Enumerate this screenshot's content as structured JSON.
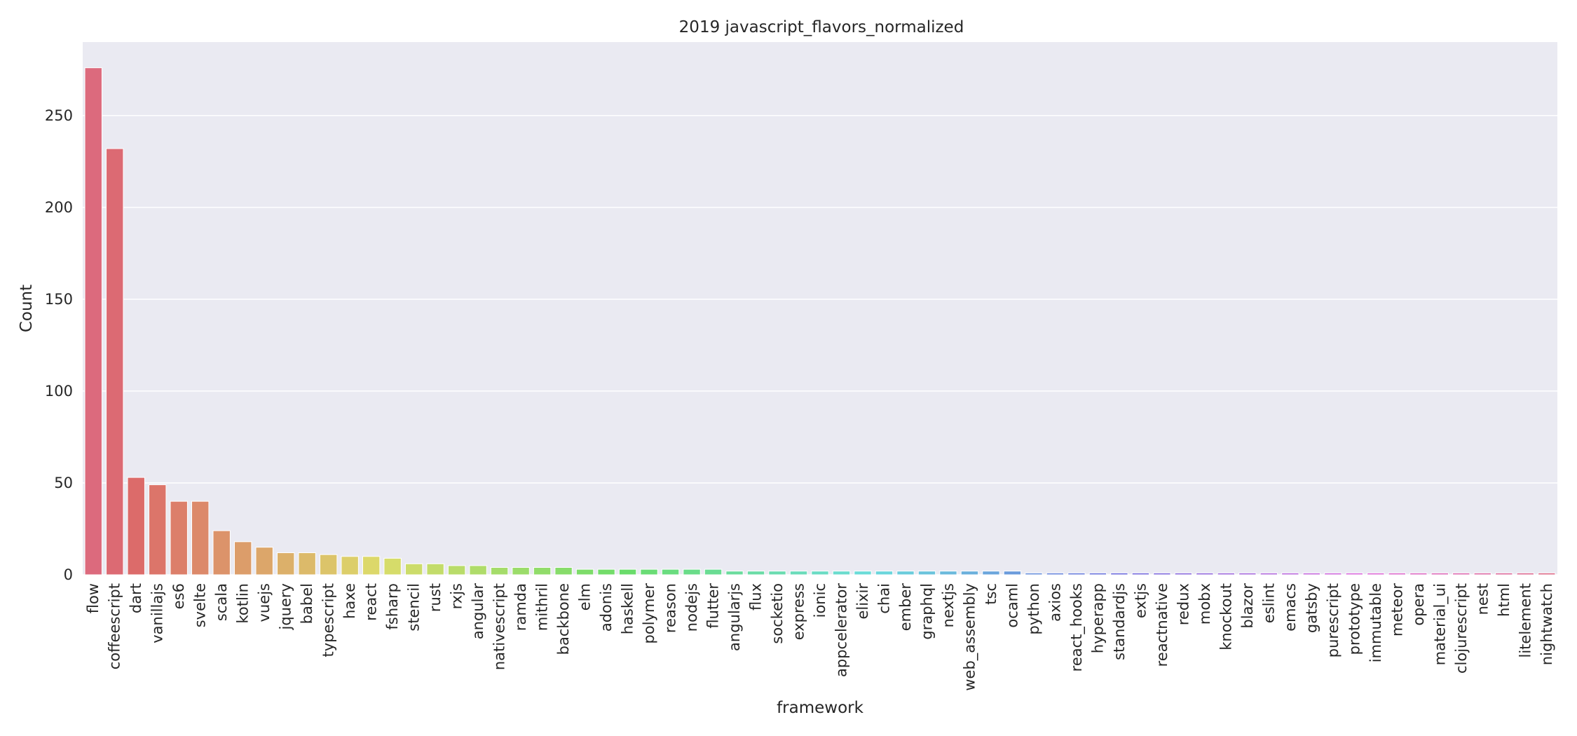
{
  "chart_data": {
    "type": "bar",
    "title": "2019 javascript_flavors_normalized",
    "xlabel": "framework",
    "ylabel": "Count",
    "ylim": [
      0,
      290
    ],
    "yticks": [
      0,
      50,
      100,
      150,
      200,
      250
    ],
    "grid": true,
    "legend": "none",
    "categories": [
      "flow",
      "coffeescript",
      "dart",
      "vanillajs",
      "es6",
      "svelte",
      "scala",
      "kotlin",
      "vuejs",
      "jquery",
      "babel",
      "typescript",
      "haxe",
      "react",
      "fsharp",
      "stencil",
      "rust",
      "rxjs",
      "angular",
      "nativescript",
      "ramda",
      "mithril",
      "backbone",
      "elm",
      "adonis",
      "haskell",
      "polymer",
      "reason",
      "nodejs",
      "flutter",
      "angularjs",
      "flux",
      "socketio",
      "express",
      "ionic",
      "appcelerator",
      "elixir",
      "chai",
      "ember",
      "graphql",
      "nextjs",
      "web_assembly",
      "tsc",
      "ocaml",
      "python",
      "axios",
      "react_hooks",
      "hyperapp",
      "standardjs",
      "extjs",
      "reactnative",
      "redux",
      "mobx",
      "knockout",
      "blazor",
      "eslint",
      "emacs",
      "gatsby",
      "purescript",
      "prototype",
      "immutable",
      "meteor",
      "opera",
      "material_ui",
      "clojurescript",
      "nest",
      "html",
      "litelement",
      "nightwatch"
    ],
    "values": [
      276,
      232,
      53,
      49,
      40,
      40,
      24,
      18,
      15,
      12,
      12,
      11,
      10,
      10,
      9,
      6,
      6,
      5,
      5,
      4,
      4,
      4,
      4,
      3,
      3,
      3,
      3,
      3,
      3,
      3,
      2,
      2,
      2,
      2,
      2,
      2,
      2,
      2,
      2,
      2,
      2,
      2,
      2,
      2,
      1,
      1,
      1,
      1,
      1,
      1,
      1,
      1,
      1,
      1,
      1,
      1,
      1,
      1,
      1,
      1,
      1,
      1,
      1,
      1,
      1,
      1,
      1,
      1,
      1
    ],
    "colors": {
      "plot_background": "#eaeaf2",
      "grid": "#ffffff",
      "palette_start": "#ee9aa7"
    }
  }
}
